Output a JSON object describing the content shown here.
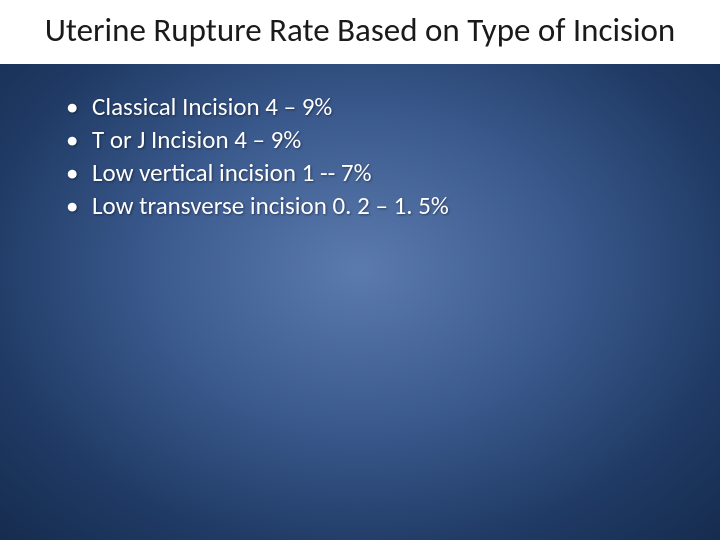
{
  "slide": {
    "title": "Uterine Rupture Rate Based on Type of Incision",
    "title_color": "#1a1a1a",
    "title_bg": "#ffffff",
    "title_fontsize": 33,
    "background_gradient": {
      "type": "radial",
      "stops": [
        "#5b7aad",
        "#3b5a8e",
        "#1f3a64",
        "#162c4f"
      ]
    },
    "bullets": [
      "Classical Incision 4 – 9%",
      "T or J Incision 4 – 9%",
      "Low vertical incision 1 -- 7%",
      "Low transverse incision 0. 2 – 1. 5%"
    ],
    "bullet_color": "#ffffff",
    "bullet_fontsize": 25
  }
}
